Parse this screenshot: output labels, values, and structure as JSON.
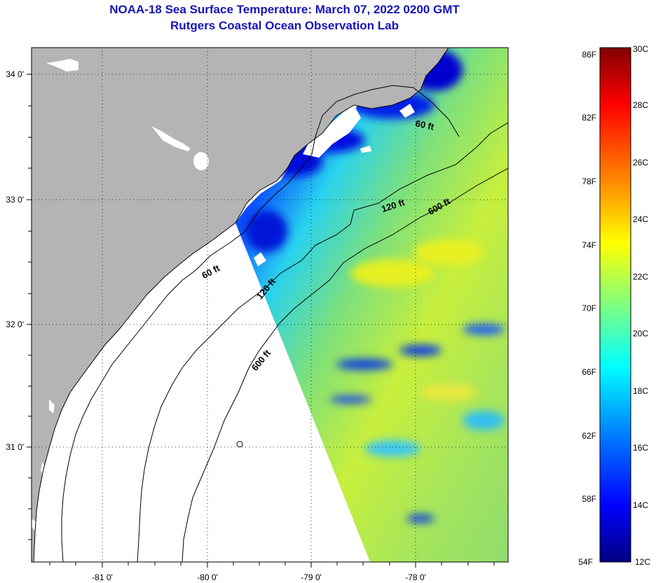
{
  "title": "NOAA-18 Sea Surface Temperature:  March 07, 2022 0200 GMT",
  "subtitle": "Rutgers Coastal Ocean Observation Lab",
  "map": {
    "lat_labels": [
      "34 0'",
      "33 0'",
      "32 0'",
      "31 0'"
    ],
    "lon_labels": [
      "-81 0'",
      "-80 0'",
      "-79 0'",
      "-78 0'"
    ],
    "isobaths": [
      {
        "label": "60 ft",
        "location": "near Cape Fear shelf (top)"
      },
      {
        "label": "120 ft",
        "location": "mid shelf (top)"
      },
      {
        "label": "600 ft",
        "location": "shelf break (top)"
      },
      {
        "label": "60 ft",
        "location": "South Carolina inner shelf"
      },
      {
        "label": "120 ft",
        "location": "South Carolina mid shelf"
      },
      {
        "label": "600 ft",
        "location": "Georgia shelf break"
      }
    ],
    "colors": {
      "land": "#b4b4b4",
      "no_data": "#ffffff",
      "contour": "#000000",
      "grid": "#000000"
    }
  },
  "colorbar": {
    "fahrenheit_labels": [
      "86F",
      "82F",
      "78F",
      "74F",
      "70F",
      "66F",
      "62F",
      "58F",
      "54F"
    ],
    "celsius_labels": [
      "30C",
      "28C",
      "26C",
      "24C",
      "22C",
      "20C",
      "18C",
      "16C",
      "14C",
      "12C"
    ],
    "min_c": 12,
    "max_c": 30,
    "colormap": [
      "#000080",
      "#0000ff",
      "#0080ff",
      "#00ffff",
      "#80ff80",
      "#ffff00",
      "#ff8000",
      "#ff0000",
      "#800000"
    ]
  }
}
